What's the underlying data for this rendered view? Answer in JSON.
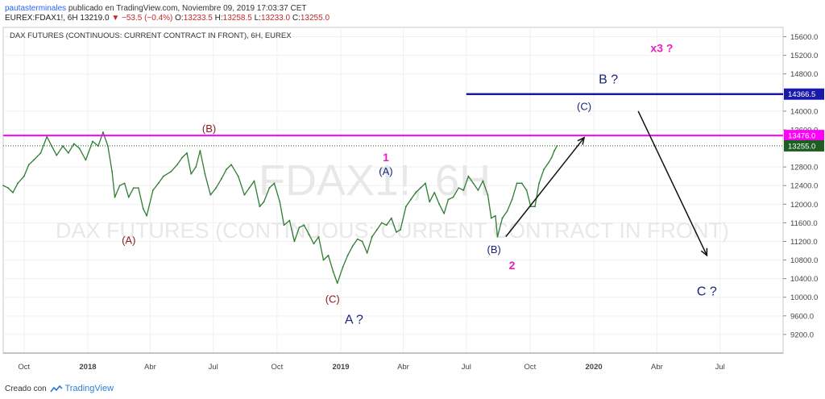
{
  "header": {
    "user": "pautasterminales",
    "published": " publicado en TradingView.com, Noviembre 09, 2019 17:03:37 CET"
  },
  "ohlc": {
    "symbol": "EUREX:FDAX1!, 6H",
    "last": "13219.0",
    "change": "−53.5 (−0.4%)",
    "o_label": "O:",
    "o": "13233.5",
    "h_label": "H:",
    "h": "13258.5",
    "l_label": "L:",
    "l": "13233.0",
    "c_label": "C:",
    "c": "13255.0"
  },
  "footer": {
    "prefix": "Creado con",
    "brand": "TradingView"
  },
  "chart_data": {
    "type": "line",
    "title": "DAX FUTURES (CONTINUOUS: CURRENT CONTRACT IN FRONT), 6H, EUREX",
    "watermark_symbol": "FDAX1!, 6H",
    "watermark_name": "DAX FUTURES (CONTINUOUS: CURRENT CONTRACT IN FRONT)",
    "ylim": [
      8800,
      15800
    ],
    "xlim": [
      "2017-09-01",
      "2020-09-30"
    ],
    "y_ticks": [
      "15600.0",
      "15200.0",
      "14800.0",
      "14000.0",
      "13600.0",
      "12800.0",
      "12400.0",
      "12000.0",
      "11600.0",
      "11200.0",
      "10800.0",
      "10400.0",
      "10000.0",
      "9600.0",
      "9200.0"
    ],
    "x_ticks": [
      {
        "date": "2017-10-01",
        "label": "Oct",
        "bold": false
      },
      {
        "date": "2018-01-01",
        "label": "2018",
        "bold": true
      },
      {
        "date": "2018-04-01",
        "label": "Abr",
        "bold": false
      },
      {
        "date": "2018-07-01",
        "label": "Jul",
        "bold": false
      },
      {
        "date": "2018-10-01",
        "label": "Oct",
        "bold": false
      },
      {
        "date": "2019-01-01",
        "label": "2019",
        "bold": true
      },
      {
        "date": "2019-04-01",
        "label": "Abr",
        "bold": false
      },
      {
        "date": "2019-07-01",
        "label": "Jul",
        "bold": false
      },
      {
        "date": "2019-10-01",
        "label": "Oct",
        "bold": false
      },
      {
        "date": "2020-01-01",
        "label": "2020",
        "bold": true
      },
      {
        "date": "2020-04-01",
        "label": "Abr",
        "bold": false
      },
      {
        "date": "2020-07-01",
        "label": "Jul",
        "bold": false
      }
    ],
    "series": [
      {
        "color": "#2e7d32",
        "points": [
          [
            "2017-09-01",
            12400
          ],
          [
            "2017-09-08",
            12350
          ],
          [
            "2017-09-15",
            12250
          ],
          [
            "2017-09-22",
            12450
          ],
          [
            "2017-10-01",
            12600
          ],
          [
            "2017-10-08",
            12850
          ],
          [
            "2017-10-15",
            12950
          ],
          [
            "2017-10-25",
            13100
          ],
          [
            "2017-11-03",
            13450
          ],
          [
            "2017-11-10",
            13250
          ],
          [
            "2017-11-17",
            13050
          ],
          [
            "2017-11-26",
            13250
          ],
          [
            "2017-12-04",
            13100
          ],
          [
            "2017-12-12",
            13300
          ],
          [
            "2017-12-20",
            13200
          ],
          [
            "2017-12-29",
            12950
          ],
          [
            "2018-01-08",
            13350
          ],
          [
            "2018-01-16",
            13250
          ],
          [
            "2018-01-23",
            13550
          ],
          [
            "2018-01-30",
            13250
          ],
          [
            "2018-02-05",
            12700
          ],
          [
            "2018-02-09",
            12150
          ],
          [
            "2018-02-16",
            12400
          ],
          [
            "2018-02-23",
            12450
          ],
          [
            "2018-03-01",
            12150
          ],
          [
            "2018-03-08",
            12350
          ],
          [
            "2018-03-15",
            12350
          ],
          [
            "2018-03-22",
            11900
          ],
          [
            "2018-03-27",
            11750
          ],
          [
            "2018-04-05",
            12300
          ],
          [
            "2018-04-13",
            12450
          ],
          [
            "2018-04-20",
            12600
          ],
          [
            "2018-05-01",
            12700
          ],
          [
            "2018-05-10",
            12850
          ],
          [
            "2018-05-17",
            13000
          ],
          [
            "2018-05-24",
            13100
          ],
          [
            "2018-05-30",
            12650
          ],
          [
            "2018-06-06",
            12800
          ],
          [
            "2018-06-12",
            13150
          ],
          [
            "2018-06-19",
            12650
          ],
          [
            "2018-06-27",
            12200
          ],
          [
            "2018-07-05",
            12350
          ],
          [
            "2018-07-13",
            12550
          ],
          [
            "2018-07-20",
            12750
          ],
          [
            "2018-07-27",
            12850
          ],
          [
            "2018-08-06",
            12600
          ],
          [
            "2018-08-15",
            12200
          ],
          [
            "2018-08-22",
            12350
          ],
          [
            "2018-08-29",
            12500
          ],
          [
            "2018-09-06",
            11950
          ],
          [
            "2018-09-12",
            12050
          ],
          [
            "2018-09-20",
            12350
          ],
          [
            "2018-09-27",
            12450
          ],
          [
            "2018-10-05",
            12050
          ],
          [
            "2018-10-11",
            11550
          ],
          [
            "2018-10-19",
            11650
          ],
          [
            "2018-10-26",
            11200
          ],
          [
            "2018-11-02",
            11500
          ],
          [
            "2018-11-09",
            11550
          ],
          [
            "2018-11-16",
            11350
          ],
          [
            "2018-11-23",
            11150
          ],
          [
            "2018-11-30",
            11300
          ],
          [
            "2018-12-07",
            10800
          ],
          [
            "2018-12-14",
            10900
          ],
          [
            "2018-12-21",
            10550
          ],
          [
            "2018-12-27",
            10300
          ],
          [
            "2019-01-04",
            10650
          ],
          [
            "2019-01-11",
            10900
          ],
          [
            "2019-01-18",
            11100
          ],
          [
            "2019-01-25",
            11250
          ],
          [
            "2019-02-01",
            11200
          ],
          [
            "2019-02-08",
            10950
          ],
          [
            "2019-02-15",
            11300
          ],
          [
            "2019-02-22",
            11450
          ],
          [
            "2019-03-01",
            11600
          ],
          [
            "2019-03-08",
            11550
          ],
          [
            "2019-03-15",
            11700
          ],
          [
            "2019-03-22",
            11400
          ],
          [
            "2019-03-28",
            11450
          ],
          [
            "2019-04-05",
            11950
          ],
          [
            "2019-04-12",
            12100
          ],
          [
            "2019-04-19",
            12250
          ],
          [
            "2019-04-26",
            12350
          ],
          [
            "2019-05-03",
            12450
          ],
          [
            "2019-05-09",
            12050
          ],
          [
            "2019-05-16",
            12250
          ],
          [
            "2019-05-23",
            12000
          ],
          [
            "2019-05-30",
            11800
          ],
          [
            "2019-06-05",
            12100
          ],
          [
            "2019-06-12",
            12150
          ],
          [
            "2019-06-20",
            12350
          ],
          [
            "2019-06-27",
            12300
          ],
          [
            "2019-07-04",
            12600
          ],
          [
            "2019-07-11",
            12450
          ],
          [
            "2019-07-18",
            12300
          ],
          [
            "2019-07-25",
            12500
          ],
          [
            "2019-08-01",
            12200
          ],
          [
            "2019-08-06",
            11700
          ],
          [
            "2019-08-12",
            11750
          ],
          [
            "2019-08-15",
            11300
          ],
          [
            "2019-08-22",
            11700
          ],
          [
            "2019-08-29",
            11850
          ],
          [
            "2019-09-05",
            12100
          ],
          [
            "2019-09-12",
            12450
          ],
          [
            "2019-09-19",
            12450
          ],
          [
            "2019-09-26",
            12300
          ],
          [
            "2019-10-02",
            11950
          ],
          [
            "2019-10-08",
            11950
          ],
          [
            "2019-10-14",
            12450
          ],
          [
            "2019-10-21",
            12750
          ],
          [
            "2019-10-28",
            12900
          ],
          [
            "2019-11-01",
            13000
          ],
          [
            "2019-11-05",
            13150
          ],
          [
            "2019-11-09",
            13255
          ]
        ]
      }
    ],
    "h_lines": [
      {
        "y": 13476,
        "color": "#ff00ff",
        "width": 2,
        "x_from": "2017-09-01",
        "label": "13476.0"
      },
      {
        "y": 14366.5,
        "color": "#1a1aaa",
        "width": 2.5,
        "x_from": "2019-07-01",
        "label": "14366.5"
      },
      {
        "y": 13255,
        "color": "#1b5e20",
        "width": 1,
        "dash": true,
        "x_from": "2017-09-01",
        "label": "13255.0"
      }
    ],
    "arrows": [
      {
        "from": [
          "2019-08-27",
          11300
        ],
        "to": [
          "2019-12-18",
          13430
        ]
      },
      {
        "from": [
          "2020-03-05",
          14000
        ],
        "to": [
          "2020-06-12",
          10900
        ]
      }
    ],
    "annotations": [
      {
        "text": "(B)",
        "x": "2018-06-25",
        "y": 13550,
        "color": "#8b1a1a",
        "size": 13
      },
      {
        "text": "(A)",
        "x": "2018-03-01",
        "y": 11150,
        "color": "#8b1a1a",
        "size": 13
      },
      {
        "text": "(C)",
        "x": "2018-12-20",
        "y": 9880,
        "color": "#8b1a1a",
        "size": 13
      },
      {
        "text": "A ?",
        "x": "2019-01-20",
        "y": 9430,
        "color": "#1a237e",
        "size": 16
      },
      {
        "text": "1",
        "x": "2019-03-07",
        "y": 12920,
        "color": "#e91ec0",
        "size": 14,
        "bold": true
      },
      {
        "text": "(A)",
        "x": "2019-03-07",
        "y": 12630,
        "color": "#1a237e",
        "size": 13
      },
      {
        "text": "(B)",
        "x": "2019-08-10",
        "y": 10950,
        "color": "#1a237e",
        "size": 13
      },
      {
        "text": "2",
        "x": "2019-09-05",
        "y": 10600,
        "color": "#e91ec0",
        "size": 14,
        "bold": true
      },
      {
        "text": "(C)",
        "x": "2019-12-18",
        "y": 14020,
        "color": "#1a237e",
        "size": 13
      },
      {
        "text": "B ?",
        "x": "2020-01-22",
        "y": 14600,
        "color": "#1a237e",
        "size": 16
      },
      {
        "text": "x3 ?",
        "x": "2020-04-08",
        "y": 15270,
        "color": "#e91ec0",
        "size": 14,
        "bold": true
      },
      {
        "text": "C ?",
        "x": "2020-06-12",
        "y": 10040,
        "color": "#1a237e",
        "size": 16
      }
    ]
  }
}
